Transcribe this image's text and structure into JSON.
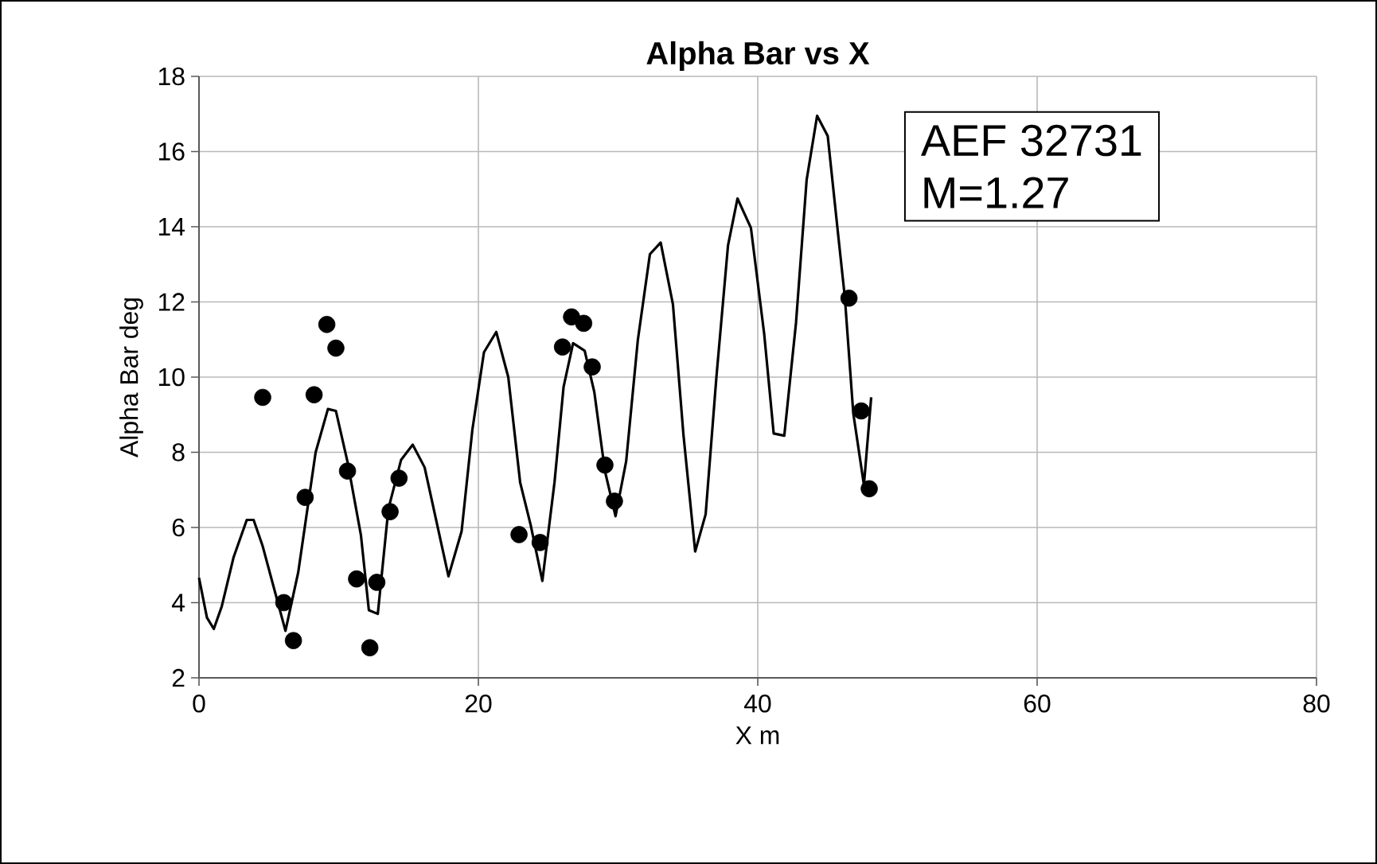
{
  "chart_data": {
    "type": "line",
    "title": "Alpha Bar vs X",
    "xlabel": "X m",
    "ylabel": "Alpha Bar deg",
    "annotations": [
      "AEF 32731",
      "M=1.27"
    ],
    "xlim": [
      0,
      80
    ],
    "ylim": [
      2,
      18
    ],
    "xticks": [
      0,
      20,
      40,
      60,
      80
    ],
    "yticks": [
      2,
      4,
      6,
      8,
      10,
      12,
      14,
      16,
      18
    ],
    "grid": true,
    "series": [
      {
        "color": "#000000",
        "x": [
          0,
          0.57,
          1.06,
          1.63,
          2.47,
          3.42,
          3.91,
          4.56,
          6.19,
          7.1,
          8.35,
          9.23,
          9.8,
          10.63,
          11.59,
          12.16,
          12.8,
          13.56,
          14.47,
          15.3,
          16.15,
          17.86,
          18.8,
          19.57,
          20.4,
          21.28,
          22.14,
          22.99,
          23.74,
          24.58,
          25.45,
          26.1,
          26.78,
          27.61,
          28.3,
          29.06,
          29.82,
          30.58,
          31.42,
          32.28,
          33.05,
          33.93,
          34.68,
          35.52,
          36.27,
          37.04,
          37.87,
          38.55,
          39.51,
          40.46,
          41.14,
          41.9,
          42.74,
          43.5,
          44.25,
          45.01,
          45.78,
          46.23,
          46.84,
          47.6,
          48.12
        ],
        "values": [
          4.66,
          3.6,
          3.3,
          3.9,
          5.2,
          6.2,
          6.2,
          5.5,
          3.25,
          4.8,
          8.0,
          9.15,
          9.1,
          7.75,
          5.8,
          3.8,
          3.7,
          6.5,
          7.8,
          8.2,
          7.6,
          4.7,
          5.9,
          8.6,
          10.66,
          11.2,
          10.0,
          7.2,
          6.07,
          4.58,
          7.2,
          9.74,
          10.9,
          10.7,
          9.6,
          7.5,
          6.3,
          7.76,
          11.0,
          13.27,
          13.58,
          11.93,
          8.47,
          5.36,
          6.35,
          10.0,
          13.5,
          14.75,
          13.97,
          11.15,
          8.5,
          8.44,
          11.45,
          15.25,
          16.95,
          16.41,
          13.7,
          12.14,
          9.03,
          7.13,
          9.46
        ]
      },
      {
        "type": "scatter",
        "color": "#000000",
        "marker": "circle",
        "x": [
          4.56,
          8.24,
          9.15,
          9.8,
          7.6,
          6.07,
          6.76,
          10.63,
          11.28,
          12.23,
          12.73,
          13.68,
          14.32,
          22.91,
          24.42,
          26.02,
          26.67,
          27.54,
          28.15,
          29.06,
          29.74,
          46.53,
          47.41,
          47.98
        ],
        "values": [
          9.46,
          9.53,
          11.4,
          10.77,
          6.8,
          4.0,
          2.99,
          7.5,
          4.63,
          2.8,
          4.54,
          6.42,
          7.31,
          5.81,
          5.6,
          10.8,
          11.6,
          11.43,
          10.27,
          7.66,
          6.7,
          12.1,
          9.1,
          7.03
        ]
      }
    ]
  }
}
